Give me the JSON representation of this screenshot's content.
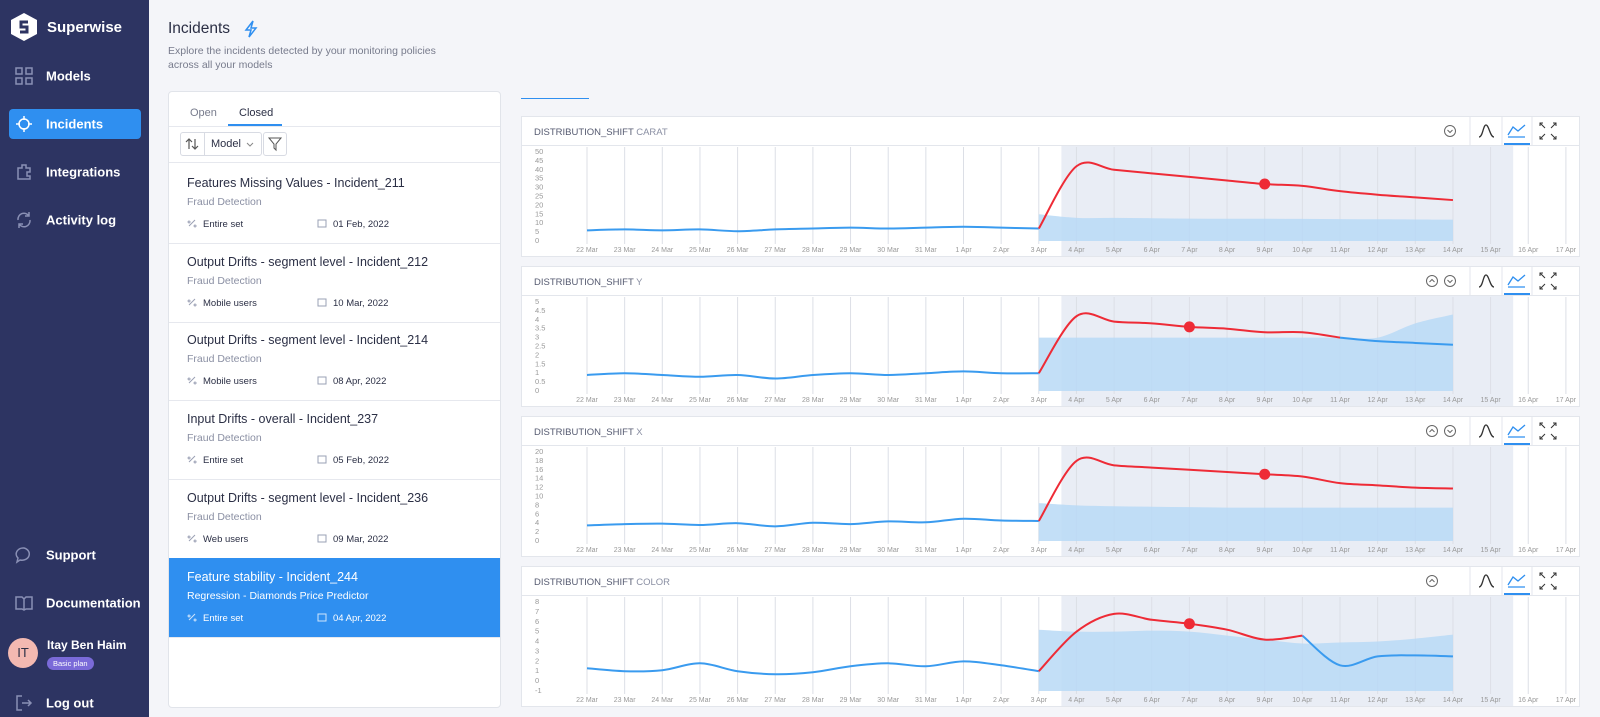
{
  "sidebar": {
    "brand": "Superwise",
    "nav": [
      "Models",
      "Incidents",
      "Integrations",
      "Activity log"
    ],
    "bottom_nav": [
      "Support",
      "Documentation"
    ],
    "user": {
      "initials": "IT",
      "name": "Itay Ben Haim",
      "plan": "Basic plan"
    },
    "logout": "Log out"
  },
  "header": {
    "title": "Incidents",
    "subtitle": "Explore the incidents detected by your monitoring policies across all your models"
  },
  "incident_list": {
    "tabs": [
      "Open",
      "Closed"
    ],
    "sort_field": "Model",
    "items": [
      {
        "title": "Features Missing Values - Incident_211",
        "model": "Fraud Detection",
        "segment": "Entire set",
        "date": "01 Feb, 2022"
      },
      {
        "title": "Output Drifts - segment level - Incident_212",
        "model": "Fraud Detection",
        "segment": "Mobile users",
        "date": "10 Mar, 2022"
      },
      {
        "title": "Output Drifts - segment level - Incident_214",
        "model": "Fraud Detection",
        "segment": "Mobile users",
        "date": "08 Apr, 2022"
      },
      {
        "title": "Input Drifts - overall - Incident_237",
        "model": "Fraud Detection",
        "segment": "Entire set",
        "date": "05 Feb, 2022"
      },
      {
        "title": "Output Drifts - segment level - Incident_236",
        "model": "Fraud Detection",
        "segment": "Web users",
        "date": "09 Mar, 2022"
      },
      {
        "title": "Feature stability - Incident_244",
        "model": "Regression - Diamonds Price Predictor",
        "segment": "Entire set",
        "date": "04 Apr, 2022",
        "selected": true
      }
    ]
  },
  "chart_data": [
    {
      "type": "line",
      "title_prefix": "DISTRIBUTION_SHIFT",
      "feature": "CARAT",
      "x": [
        "22 Mar",
        "23 Mar",
        "24 Mar",
        "25 Mar",
        "26 Mar",
        "27 Mar",
        "28 Mar",
        "29 Mar",
        "30 Mar",
        "31 Mar",
        "1 Apr",
        "2 Apr",
        "3 Apr",
        "4 Apr",
        "5 Apr",
        "6 Apr",
        "7 Apr",
        "8 Apr",
        "9 Apr",
        "10 Apr",
        "11 Apr",
        "12 Apr",
        "13 Apr",
        "14 Apr",
        "15 Apr",
        "16 Apr",
        "17 Apr"
      ],
      "ylim": [
        0,
        50
      ],
      "yticks": [
        0,
        5,
        10,
        15,
        20,
        25,
        30,
        35,
        40,
        45,
        50
      ],
      "series": [
        {
          "color": "#3a9bef",
          "values": [
            6,
            6.5,
            6,
            6.5,
            5.5,
            6.5,
            7,
            7.5,
            7,
            7.5,
            8,
            7.5,
            7,
            null,
            null,
            null,
            null,
            null,
            null,
            null,
            null,
            null,
            null,
            null,
            null,
            null,
            null
          ]
        },
        {
          "color": "#ee2b36",
          "values": [
            null,
            null,
            null,
            null,
            null,
            null,
            null,
            null,
            null,
            null,
            null,
            null,
            7,
            42,
            40,
            38,
            36,
            34,
            32,
            31,
            28,
            26,
            24.5,
            23,
            null,
            null,
            null
          ]
        }
      ],
      "band": {
        "color": "#b9d9f6",
        "values": [
          null,
          null,
          null,
          null,
          null,
          null,
          null,
          null,
          null,
          null,
          null,
          null,
          15,
          13,
          13,
          12.8,
          12.6,
          12.5,
          12.5,
          12.4,
          12.3,
          12.2,
          12.1,
          12,
          null,
          null,
          null
        ]
      },
      "highlight": {
        "x": "9 Apr",
        "value": 32
      }
    },
    {
      "type": "line",
      "title_prefix": "DISTRIBUTION_SHIFT",
      "feature": "Y",
      "x": [
        "22 Mar",
        "23 Mar",
        "24 Mar",
        "25 Mar",
        "26 Mar",
        "27 Mar",
        "28 Mar",
        "29 Mar",
        "30 Mar",
        "31 Mar",
        "1 Apr",
        "2 Apr",
        "3 Apr",
        "4 Apr",
        "5 Apr",
        "6 Apr",
        "7 Apr",
        "8 Apr",
        "9 Apr",
        "10 Apr",
        "11 Apr",
        "12 Apr",
        "13 Apr",
        "14 Apr",
        "15 Apr",
        "16 Apr",
        "17 Apr"
      ],
      "ylim": [
        0,
        5
      ],
      "yticks": [
        0,
        0.5,
        1,
        1.5,
        2,
        2.5,
        3,
        3.5,
        4,
        4.5,
        5
      ],
      "series": [
        {
          "color": "#3a9bef",
          "values": [
            0.9,
            1,
            0.9,
            0.8,
            0.9,
            0.7,
            0.9,
            1,
            0.9,
            1,
            1.1,
            1,
            1,
            null,
            null,
            null,
            null,
            null,
            null,
            null,
            3,
            2.8,
            2.7,
            2.6,
            null,
            null,
            null
          ]
        },
        {
          "color": "#ee2b36",
          "values": [
            null,
            null,
            null,
            null,
            null,
            null,
            null,
            null,
            null,
            null,
            null,
            null,
            1,
            4.2,
            3.9,
            3.8,
            3.6,
            3.5,
            3.3,
            3.3,
            3,
            null,
            null,
            null,
            null,
            null,
            null
          ]
        }
      ],
      "band": {
        "color": "#b9d9f6",
        "values": [
          null,
          null,
          null,
          null,
          null,
          null,
          null,
          null,
          null,
          null,
          null,
          null,
          3,
          3,
          3,
          3,
          3,
          3,
          3,
          3,
          3,
          3,
          3.8,
          4.3,
          null,
          null,
          null
        ]
      },
      "highlight": {
        "x": "7 Apr",
        "value": 3.6
      }
    },
    {
      "type": "line",
      "title_prefix": "DISTRIBUTION_SHIFT",
      "feature": "X",
      "x": [
        "22 Mar",
        "23 Mar",
        "24 Mar",
        "25 Mar",
        "26 Mar",
        "27 Mar",
        "28 Mar",
        "29 Mar",
        "30 Mar",
        "31 Mar",
        "1 Apr",
        "2 Apr",
        "3 Apr",
        "4 Apr",
        "5 Apr",
        "6 Apr",
        "7 Apr",
        "8 Apr",
        "9 Apr",
        "10 Apr",
        "11 Apr",
        "12 Apr",
        "13 Apr",
        "14 Apr",
        "15 Apr",
        "16 Apr",
        "17 Apr"
      ],
      "ylim": [
        0,
        20
      ],
      "yticks": [
        0,
        2,
        4,
        6,
        8,
        10,
        12,
        14,
        16,
        18,
        20
      ],
      "series": [
        {
          "color": "#3a9bef",
          "values": [
            3.5,
            3.8,
            3.9,
            3.6,
            4,
            3.3,
            4.1,
            3.8,
            4.4,
            4.2,
            5,
            4.6,
            4.5,
            null,
            null,
            null,
            null,
            null,
            null,
            null,
            null,
            null,
            null,
            null,
            null,
            null,
            null
          ]
        },
        {
          "color": "#ee2b36",
          "values": [
            null,
            null,
            null,
            null,
            null,
            null,
            null,
            null,
            null,
            null,
            null,
            null,
            4.5,
            18,
            17,
            16.5,
            16,
            15.5,
            15,
            14.5,
            13,
            12.5,
            12,
            11.8,
            null,
            null,
            null
          ]
        }
      ],
      "band": {
        "color": "#b9d9f6",
        "values": [
          null,
          null,
          null,
          null,
          null,
          null,
          null,
          null,
          null,
          null,
          null,
          null,
          8.5,
          8,
          7.8,
          7.7,
          7.6,
          7.5,
          7.5,
          7.5,
          7.5,
          7.5,
          7.5,
          7.5,
          null,
          null,
          null
        ]
      },
      "highlight": {
        "x": "9 Apr",
        "value": 15
      }
    },
    {
      "type": "line",
      "title_prefix": "DISTRIBUTION_SHIFT",
      "feature": "COLOR",
      "x": [
        "22 Mar",
        "23 Mar",
        "24 Mar",
        "25 Mar",
        "26 Mar",
        "27 Mar",
        "28 Mar",
        "29 Mar",
        "30 Mar",
        "31 Mar",
        "1 Apr",
        "2 Apr",
        "3 Apr",
        "4 Apr",
        "5 Apr",
        "6 Apr",
        "7 Apr",
        "8 Apr",
        "9 Apr",
        "10 Apr",
        "11 Apr",
        "12 Apr",
        "13 Apr",
        "14 Apr",
        "15 Apr",
        "16 Apr",
        "17 Apr"
      ],
      "ylim": [
        -1,
        8
      ],
      "yticks": [
        -1,
        0,
        1,
        2,
        3,
        4,
        5,
        6,
        7,
        8
      ],
      "series": [
        {
          "color": "#3a9bef",
          "values": [
            1.3,
            1,
            1.1,
            1.8,
            1,
            0.7,
            0.9,
            1.5,
            1.8,
            1.5,
            2,
            1.6,
            1,
            null,
            null,
            null,
            null,
            null,
            null,
            4.6,
            1.6,
            2.5,
            2.6,
            2.5,
            null,
            null,
            null
          ]
        },
        {
          "color": "#ee2b36",
          "values": [
            null,
            null,
            null,
            null,
            null,
            null,
            null,
            null,
            null,
            null,
            null,
            null,
            1,
            5,
            6.8,
            6.2,
            5.8,
            5.2,
            4.2,
            4.6,
            null,
            null,
            null,
            null,
            null,
            null,
            null
          ]
        }
      ],
      "band": {
        "color": "#b9d9f6",
        "values": [
          null,
          null,
          null,
          null,
          null,
          null,
          null,
          null,
          null,
          null,
          null,
          null,
          5.2,
          5,
          5,
          5.1,
          5,
          4.6,
          4.2,
          3.8,
          3.9,
          4,
          4.3,
          4.7,
          null,
          null,
          null
        ]
      },
      "highlight": {
        "x": "7 Apr",
        "value": 5.8
      }
    }
  ]
}
